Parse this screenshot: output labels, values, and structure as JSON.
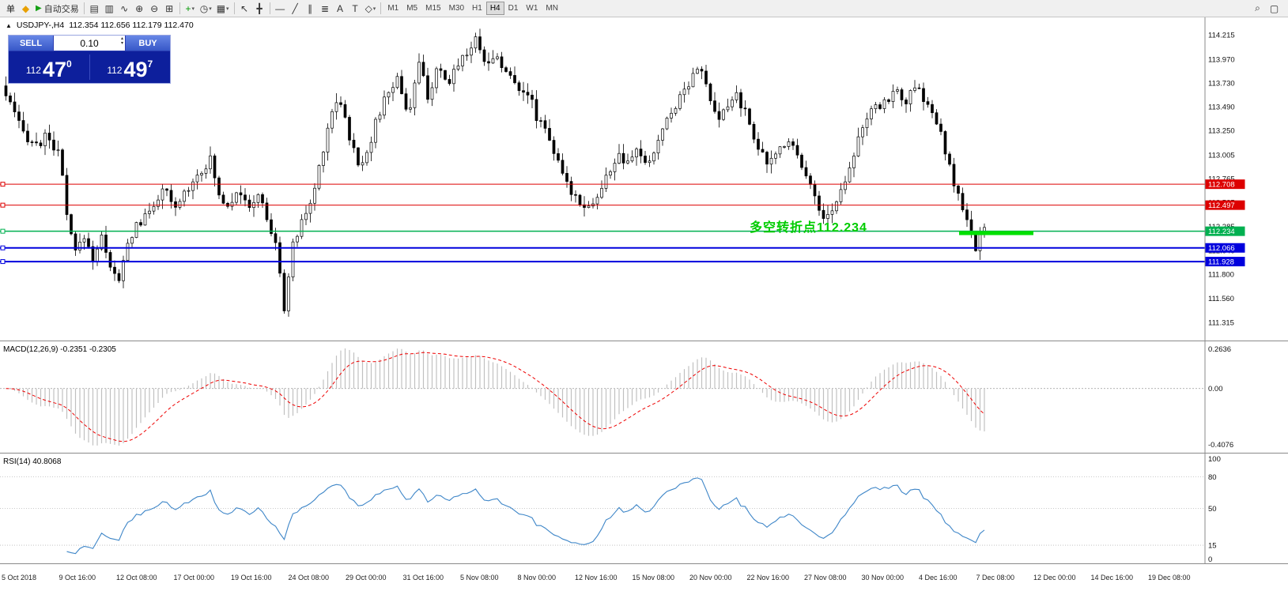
{
  "toolbar": {
    "menu_label": "单",
    "logo_glyph": "◆",
    "autotrade_play_glyph": "▶",
    "autotrade_label": "自动交易",
    "groups": [
      [
        {
          "name": "bar-chart-icon",
          "glyph": "▤"
        },
        {
          "name": "candlestick-icon",
          "glyph": "▥"
        },
        {
          "name": "line-chart-icon",
          "glyph": "∿"
        },
        {
          "name": "zoom-in-icon",
          "glyph": "⊕"
        },
        {
          "name": "zoom-out-icon",
          "glyph": "⊖"
        },
        {
          "name": "tile-windows-icon",
          "glyph": "⊞"
        }
      ],
      [
        {
          "name": "new-order-icon",
          "glyph": "+",
          "color": "#009900",
          "dropdown": true
        },
        {
          "name": "clock-icon",
          "glyph": "◷",
          "dropdown": true
        },
        {
          "name": "chart-template-icon",
          "glyph": "▦",
          "dropdown": true
        }
      ],
      [
        {
          "name": "cursor-icon",
          "glyph": "↖"
        },
        {
          "name": "crosshair-icon",
          "glyph": "╋"
        }
      ],
      [
        {
          "name": "hline-icon",
          "glyph": "—"
        },
        {
          "name": "trendline-icon",
          "glyph": "╱"
        },
        {
          "name": "channel-icon",
          "glyph": "∥"
        },
        {
          "name": "fibonacci-icon",
          "glyph": "≣"
        },
        {
          "name": "text-icon",
          "glyph": "A"
        },
        {
          "name": "label-icon",
          "glyph": "T"
        },
        {
          "name": "shapes-icon",
          "glyph": "◇",
          "dropdown": true
        }
      ]
    ],
    "timeframes": [
      "M1",
      "M5",
      "M15",
      "M30",
      "H1",
      "H4",
      "D1",
      "W1",
      "MN"
    ],
    "active_timeframe": "H4",
    "right_icons": [
      {
        "name": "search-icon",
        "glyph": "⌕"
      },
      {
        "name": "new-window-icon",
        "glyph": "▢"
      }
    ]
  },
  "header": {
    "collapse_glyph": "▲",
    "symbol": "USDJPY-,H4",
    "ohlc": "112.354 112.656 112.179 112.470"
  },
  "trade_panel": {
    "sell_label": "SELL",
    "buy_label": "BUY",
    "lot": "0.10",
    "sell_prefix": "112",
    "sell_big": "47",
    "sell_sup": "0",
    "buy_prefix": "112",
    "buy_big": "49",
    "buy_sup": "7"
  },
  "annotation": {
    "text": "多空转折点112.234",
    "color": "#00cc00"
  },
  "levels": [
    {
      "label": "112.708",
      "price": 112.708,
      "color": "#dd0000",
      "width": 1
    },
    {
      "label": "112.497",
      "price": 112.497,
      "color": "#dd0000",
      "width": 1
    },
    {
      "label": "112.234",
      "price": 112.234,
      "color": "#00b050",
      "width": 1.5
    },
    {
      "label": "112.066",
      "price": 112.066,
      "color": "#0000dd",
      "width": 2
    },
    {
      "label": "111.928",
      "price": 111.928,
      "color": "#0000dd",
      "width": 2
    }
  ],
  "highlight_segment": {
    "price": 112.215,
    "color": "#00e000"
  },
  "price_axis": {
    "ticks": [
      "114.215",
      "113.970",
      "113.730",
      "113.490",
      "113.250",
      "113.005",
      "112.765",
      "112.525",
      "112.285",
      "112.040",
      "111.800",
      "111.560",
      "111.315"
    ]
  },
  "time_axis": {
    "ticks": [
      "5 Oct 2018",
      "9 Oct 16:00",
      "12 Oct 08:00",
      "17 Oct 00:00",
      "19 Oct 16:00",
      "24 Oct 08:00",
      "29 Oct 00:00",
      "31 Oct 16:00",
      "5 Nov 08:00",
      "8 Nov 00:00",
      "12 Nov 16:00",
      "15 Nov 08:00",
      "20 Nov 00:00",
      "22 Nov 16:00",
      "27 Nov 08:00",
      "30 Nov 00:00",
      "4 Dec 16:00",
      "7 Dec 08:00",
      "12 Dec 00:00",
      "14 Dec 16:00",
      "19 Dec 08:00"
    ]
  },
  "macd_panel": {
    "label": "MACD(12,26,9) -0.2351 -0.2305",
    "axis_max": "0.2636",
    "axis_zero": "0.00",
    "axis_min": "-0.4076"
  },
  "rsi_panel": {
    "label": "RSI(14) 40.8068",
    "axis": [
      "100",
      "80",
      "50",
      "15",
      "0"
    ],
    "level_lines": [
      80,
      50,
      15
    ]
  },
  "chart_data": {
    "type": "candlestick",
    "symbol": "USDJPY",
    "timeframe": "H4",
    "ohlc_current": {
      "open": 112.354,
      "high": 112.656,
      "low": 112.179,
      "close": 112.47
    },
    "price_range": [
      111.315,
      114.215
    ],
    "levels": [
      112.708,
      112.497,
      112.234,
      112.066,
      111.928
    ],
    "indicators": [
      {
        "name": "MACD",
        "params": [
          12,
          26,
          9
        ],
        "values": [
          -0.2351,
          -0.2305
        ],
        "range": [
          -0.4076,
          0.2636
        ]
      },
      {
        "name": "RSI",
        "params": [
          14
        ],
        "value": 40.8068,
        "range": [
          0,
          100
        ]
      }
    ],
    "keyframes": [
      [
        0,
        113.7
      ],
      [
        12,
        113.5
      ],
      [
        25,
        113.25
      ],
      [
        45,
        113.1
      ],
      [
        60,
        113.2
      ],
      [
        75,
        112.95
      ],
      [
        85,
        112.25
      ],
      [
        95,
        112.0
      ],
      [
        105,
        112.2
      ],
      [
        115,
        111.95
      ],
      [
        128,
        112.18
      ],
      [
        138,
        111.9
      ],
      [
        148,
        111.68
      ],
      [
        158,
        112.05
      ],
      [
        170,
        112.3
      ],
      [
        182,
        112.36
      ],
      [
        195,
        112.55
      ],
      [
        208,
        112.65
      ],
      [
        218,
        112.42
      ],
      [
        230,
        112.6
      ],
      [
        242,
        112.75
      ],
      [
        255,
        112.88
      ],
      [
        265,
        112.95
      ],
      [
        275,
        112.6
      ],
      [
        288,
        112.5
      ],
      [
        300,
        112.7
      ],
      [
        312,
        112.42
      ],
      [
        325,
        112.62
      ],
      [
        338,
        112.3
      ],
      [
        348,
        112.1
      ],
      [
        357,
        111.42
      ],
      [
        368,
        112.05
      ],
      [
        380,
        112.35
      ],
      [
        392,
        112.5
      ],
      [
        405,
        113.0
      ],
      [
        418,
        113.45
      ],
      [
        428,
        113.6
      ],
      [
        440,
        113.2
      ],
      [
        452,
        112.88
      ],
      [
        465,
        113.1
      ],
      [
        478,
        113.42
      ],
      [
        490,
        113.65
      ],
      [
        502,
        113.78
      ],
      [
        515,
        113.4
      ],
      [
        528,
        113.92
      ],
      [
        540,
        113.6
      ],
      [
        552,
        113.85
      ],
      [
        565,
        113.7
      ],
      [
        578,
        113.95
      ],
      [
        590,
        114.05
      ],
      [
        602,
        114.18
      ],
      [
        615,
        113.9
      ],
      [
        628,
        114.02
      ],
      [
        640,
        113.8
      ],
      [
        652,
        113.72
      ],
      [
        665,
        113.65
      ],
      [
        678,
        113.38
      ],
      [
        690,
        113.28
      ],
      [
        702,
        112.95
      ],
      [
        715,
        112.7
      ],
      [
        728,
        112.58
      ],
      [
        742,
        112.48
      ],
      [
        755,
        112.58
      ],
      [
        768,
        112.82
      ],
      [
        780,
        113.0
      ],
      [
        792,
        112.88
      ],
      [
        805,
        113.08
      ],
      [
        818,
        112.85
      ],
      [
        830,
        113.15
      ],
      [
        842,
        113.35
      ],
      [
        855,
        113.55
      ],
      [
        868,
        113.72
      ],
      [
        880,
        113.92
      ],
      [
        892,
        113.7
      ],
      [
        905,
        113.32
      ],
      [
        918,
        113.48
      ],
      [
        930,
        113.62
      ],
      [
        942,
        113.4
      ],
      [
        955,
        113.15
      ],
      [
        968,
        112.88
      ],
      [
        980,
        113.02
      ],
      [
        995,
        113.18
      ],
      [
        1008,
        113.0
      ],
      [
        1020,
        112.8
      ],
      [
        1035,
        112.42
      ],
      [
        1048,
        112.38
      ],
      [
        1060,
        112.6
      ],
      [
        1075,
        112.95
      ],
      [
        1088,
        113.28
      ],
      [
        1100,
        113.42
      ],
      [
        1115,
        113.52
      ],
      [
        1130,
        113.65
      ],
      [
        1145,
        113.55
      ],
      [
        1158,
        113.68
      ],
      [
        1172,
        113.5
      ],
      [
        1185,
        113.3
      ],
      [
        1198,
        112.9
      ],
      [
        1210,
        112.6
      ],
      [
        1222,
        112.3
      ],
      [
        1232,
        112.05
      ],
      [
        1240,
        112.2
      ],
      [
        1248,
        112.47
      ]
    ]
  }
}
